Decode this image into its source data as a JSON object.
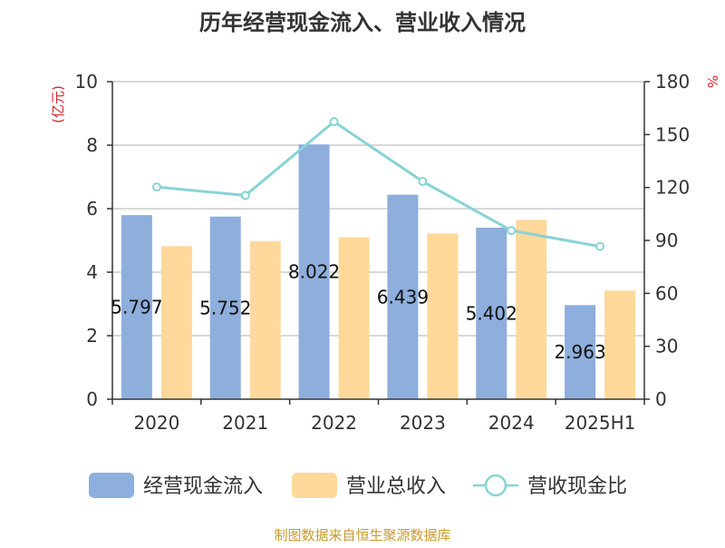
{
  "chart_data": {
    "type": "bar",
    "title": "历年经营现金流入、营业收入情况",
    "categories": [
      "2020",
      "2021",
      "2022",
      "2023",
      "2024",
      "2025H1"
    ],
    "y_left": {
      "unit": "(亿元)",
      "range": [
        0,
        10
      ],
      "ticks": [
        "0",
        "2",
        "4",
        "6",
        "8",
        "10"
      ]
    },
    "y_right": {
      "unit": "%",
      "range": [
        0,
        180
      ],
      "ticks": [
        "0",
        "30",
        "60",
        "90",
        "120",
        "150",
        "180"
      ]
    },
    "grid": true,
    "legend_position": "bottom",
    "series": [
      {
        "name": "经营现金流入",
        "type": "bar",
        "axis": "left",
        "color": "#8eaedc",
        "values": [
          5.797,
          5.752,
          8.022,
          6.439,
          5.402,
          2.963
        ],
        "labels": [
          "5.797",
          "5.752",
          "8.022",
          "6.439",
          "5.402",
          "2.963"
        ]
      },
      {
        "name": "营业总收入",
        "type": "bar",
        "axis": "left",
        "color": "#fed99b",
        "values": [
          4.82,
          4.98,
          5.1,
          5.22,
          5.65,
          3.42
        ]
      },
      {
        "name": "营收现金比",
        "type": "line",
        "axis": "right",
        "color": "#88d3d5",
        "values": [
          120.3,
          115.5,
          157.3,
          123.4,
          95.6,
          86.6
        ]
      }
    ],
    "source": "制图数据来自恒生聚源数据库"
  }
}
